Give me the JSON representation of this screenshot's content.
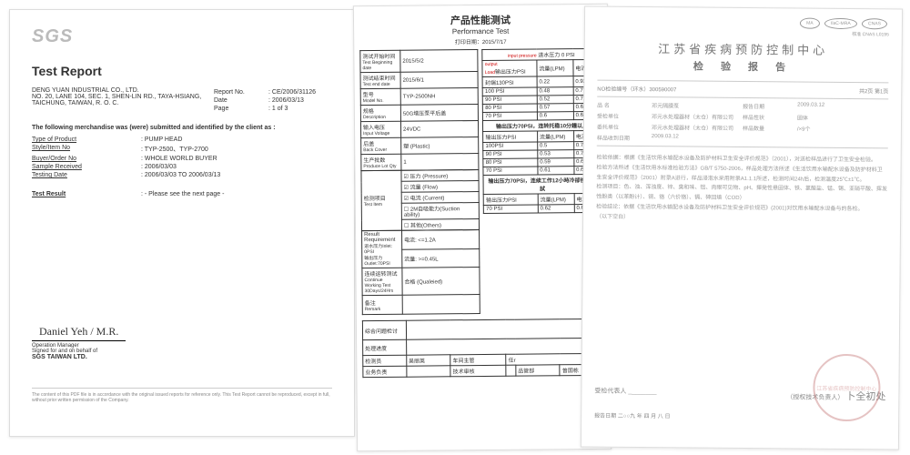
{
  "sgs": {
    "logo": "SGS",
    "title": "Test Report",
    "company": "DENG YUAN INDUSTRIAL CO., LTD.",
    "addr1": "NO. 20, LANE 104, SEC. 1, SHEN-LIN RD., TAYA-HSIANG,",
    "addr2": "TAICHUNG, TAIWAN, R. O. C.",
    "report_no_lab": "Report No.",
    "report_no": ": CE/2006/31126",
    "date_lab": "Date",
    "date": ": 2006/03/13",
    "page_lab": "Page",
    "page": ": 1 of 3",
    "intro": "The following merchandise was (were) submitted and identified by the client as :",
    "fields": [
      {
        "l": "Type of Product",
        "v": ": PUMP HEAD"
      },
      {
        "l": "Style/Item No",
        "v": ": TYP-2500、TYP-2700"
      },
      {
        "l": "Buyer/Order No",
        "v": ": WHOLE WORLD BUYER"
      },
      {
        "l": "Sample Received",
        "v": ": 2006/03/03"
      },
      {
        "l": "Testing Date",
        "v": ": 2006/03/03 TO 2006/03/13"
      }
    ],
    "result_lab": "Test Result",
    "result": ": - Please see the next page -",
    "sig": "Daniel Yeh / M.R.",
    "sig_title": "Operation Manager",
    "behalf": "Signed for and on behalf of",
    "org": "SGS TAIWAN LTD.",
    "foot": "The content of this PDF file is in accordance with the original issued reports for reference only. This Test Report cannot be reproduced, except in full, without prior written permission of the Company."
  },
  "perf": {
    "title_cn": "产品性能测试",
    "title_en": "Performance Test",
    "print": "打印日期：2015/7/17",
    "left": [
      {
        "l": "测试开始时间",
        "s": "Test Beginning date",
        "v": "2015/5/2"
      },
      {
        "l": "测试结束时间",
        "s": "Test end date",
        "v": "2015/6/1"
      },
      {
        "l": "型号",
        "s": "Model No.",
        "v": "TYP-2500NH"
      },
      {
        "l": "规格",
        "s": "Description",
        "v": "50G增压泵平后盖"
      },
      {
        "l": "输入电压",
        "s": "Input Voltage",
        "v": "24VDC"
      },
      {
        "l": "后盖",
        "s": "Back Cover",
        "v": "塑 (Plastic)"
      },
      {
        "l": "生产批数",
        "s": "Produce Lot Qty",
        "v": "1"
      }
    ],
    "test_item_lab": "检测项目",
    "test_item_sub": "Test Item",
    "checks": [
      {
        "c": "☑",
        "t": "压力 (Pressure)"
      },
      {
        "c": "☑",
        "t": "流量 (Flow)"
      },
      {
        "c": "☑",
        "t": "电流 (Current)"
      },
      {
        "c": "☐",
        "t": "2M自吸能力(Suction ability)"
      },
      {
        "c": "☐",
        "t": "其他(Others)"
      }
    ],
    "req_lab": "Result Requirement",
    "req1l": "进水压力Inlet: 0PSI",
    "req2l": "输出压力Outlet:70PSI",
    "req1v": "电流: <=1.2A",
    "req2v": "流量: >=0.45L",
    "cont_lab": "连续运转测试",
    "cont_sub": "Continue Working Test",
    "cont_sub2": "30Days/24Hrs",
    "cont_v": "合格 (Qualeied)",
    "remark_lab": "备注",
    "remark_sub": "Remark",
    "r_input": "进水压力 0 PSI",
    "r_input_red": "input pressure",
    "r_cols": [
      "输出压力PSI",
      "流量(LPM)",
      "电流(A)"
    ],
    "r_out_red": "output",
    "r_load_red": "Load",
    "r_rows1": [
      [
        "封端130PSI",
        "0.22",
        "0.92"
      ],
      [
        "100 PSI",
        "0.48",
        "0.77"
      ],
      [
        "90 PSI",
        "0.52",
        "0.73"
      ],
      [
        "80 PSI",
        "0.57",
        "0.68"
      ],
      [
        "70 PSI",
        "0.6",
        "0.65"
      ]
    ],
    "r_sec2": "输出压力70PSI，连转托稳10分鐘以上",
    "r_rows2": [
      [
        "100PSI",
        "0.5",
        "0.75"
      ],
      [
        "90 PSI",
        "0.53",
        "0.71"
      ],
      [
        "80 PSI",
        "0.59",
        "0.65"
      ],
      [
        "70 PSI",
        "0.61",
        "0.63"
      ]
    ],
    "r_sec3": "输出压力70PSI，连续工作12小時冷卻後複測試",
    "r_rows3": [
      [
        "70 PSI",
        "0.62",
        "0.64"
      ]
    ],
    "bottom": [
      {
        "l": "综合问题检讨",
        "v": ""
      },
      {
        "l": "处理进度",
        "v": ""
      }
    ],
    "sig_row": [
      {
        "l": "检测员",
        "v": "吴丽英"
      },
      {
        "l": "车间主管",
        "v": "任r"
      }
    ],
    "sig_row2": [
      {
        "l": "业务负责",
        "v": ""
      },
      {
        "l": "技术审核",
        "v": ""
      },
      {
        "l": "品管部",
        "v": "曾国栋"
      }
    ]
  },
  "cdc": {
    "logos": [
      "MA",
      "IlaC-MRA",
      "CNAS"
    ],
    "title": "江苏省疾病预防控制中心",
    "subtitle": "检 验 报 告",
    "reg": "核准 CNAS L0195",
    "code_lab": "NO检验编号",
    "code": "（环水）300590007",
    "page": "共2页 第1页",
    "rows": [
      {
        "l1": "品 名",
        "v1": "邓元隔膜泵",
        "l2": "报告日期",
        "v2": "2009.03.12"
      },
      {
        "l1": "受检单位",
        "v1": "邓元水处理器材（太仓）有限公司",
        "l2": "样品性状",
        "v2": "固体"
      },
      {
        "l1": "委托单位",
        "v1": "邓元水处理器材（太仓）有限公司",
        "l2": "样品数量",
        "v2": "/×9个"
      },
      {
        "l1": "样品收到日期",
        "v1": "2009.03.12",
        "l2": "",
        "v2": ""
      }
    ],
    "body": [
      "检验依据：根据《生活饮用水输配水设备及防护材料卫生安全评价规范》（2001），对送检样品进行了卫生安全检验。",
      "检验方法所述《生活饮用水标准检验方法》GB/T 5750-2006，样品处理方法所述《生活饮用水输配水设备及防护材料卫生安全评价规范》（2001）附录A进行，样品浸泡水采用附录A1.1.1所述，检测时间24h后，检测温度25℃±1℃。",
      "检测项目：色、浊、浑浊度、锌、臭和味、铝、肉眼可见物、pH、揮発性悬固体、铁、氯酸盐、锰、锡、亚硝平酸、挥发性酚类（以苯酚计）、铜、铬（六价铬）、镉、砷回填（COD）",
      "检验结论：依据《生活饮用水输配水设备及防护材料卫生安全评价规范》(2001)对饮用水输配水设备与的各检。",
      "（以下空白）"
    ],
    "sig1_lab": "受检代表人",
    "sig2_lab": "（授权技术负责人）",
    "sig2": "卜全初处",
    "date_lab": "报告日期",
    "date": "二○○九 年 四 月 八 日",
    "stamp": "江苏省疾病预防控制中心"
  }
}
